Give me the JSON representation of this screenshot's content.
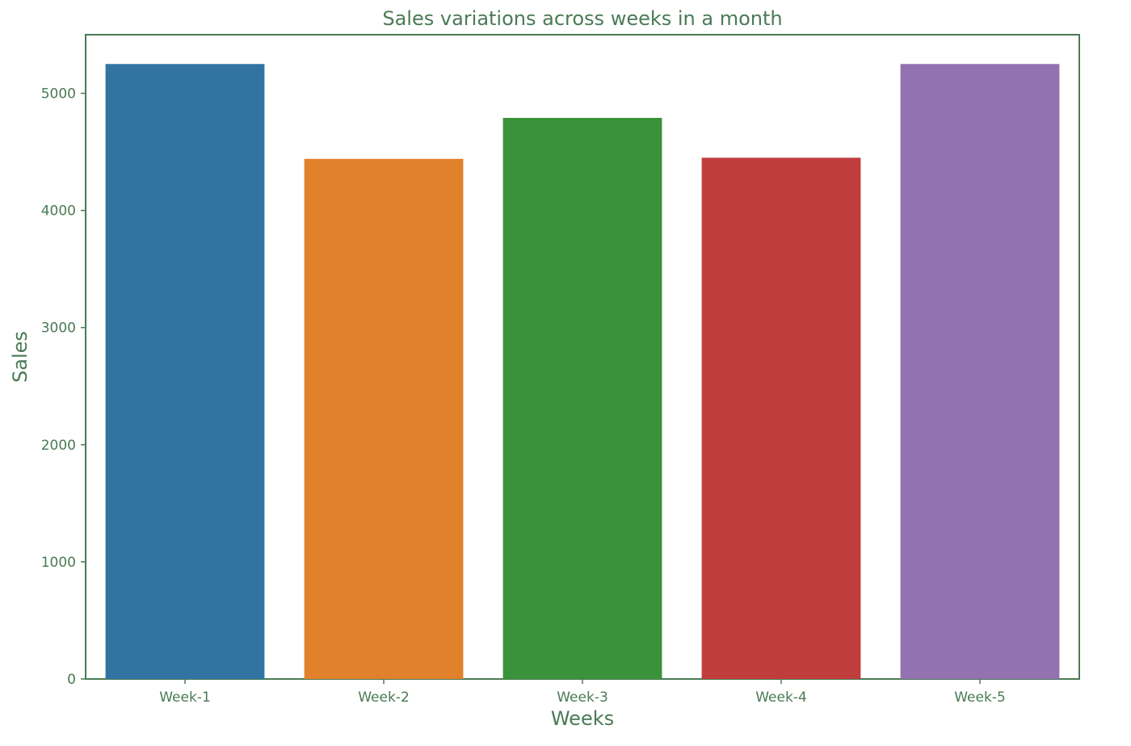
{
  "colors": {
    "text": "#4a7a55",
    "frame": "#4a7a55"
  },
  "chart_data": {
    "type": "bar",
    "title": "Sales variations across weeks in a month",
    "xlabel": "Weeks",
    "ylabel": "Sales",
    "categories": [
      "Week-1",
      "Week-2",
      "Week-3",
      "Week-4",
      "Week-5"
    ],
    "values": [
      5250,
      4440,
      4790,
      4450,
      5250
    ],
    "bar_colors": [
      "#3274a1",
      "#e1812c",
      "#3a923a",
      "#c03d3e",
      "#9372b2"
    ],
    "ylim": [
      0,
      5500
    ],
    "yticks": [
      0,
      1000,
      2000,
      3000,
      4000,
      5000
    ],
    "ytick_labels": [
      "0",
      "1000",
      "2000",
      "3000",
      "4000",
      "5000"
    ],
    "grid": false,
    "legend": "none"
  }
}
